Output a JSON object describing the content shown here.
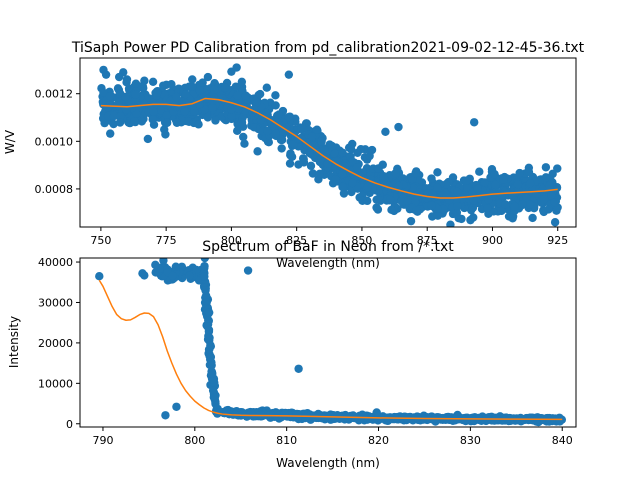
{
  "figure": {
    "background": "#ffffff",
    "scatter_color": "#1f77b4",
    "fit_color": "#ff7f0e"
  },
  "chart_data": [
    {
      "type": "scatter",
      "title": "TiSaph Power PD Calibration from pd_calibration2021-09-02-12-45-36.txt",
      "xlabel": "Wavelength (nm)",
      "ylabel": "W/V",
      "xlim": [
        742,
        932
      ],
      "ylim": [
        0.00064,
        0.00135
      ],
      "xticks": [
        750,
        775,
        800,
        825,
        850,
        875,
        900,
        925
      ],
      "xtick_labels": [
        "750",
        "775",
        "800",
        "825",
        "850",
        "875",
        "900",
        "925"
      ],
      "yticks": [
        0.0008,
        0.001,
        0.0012
      ],
      "ytick_labels": [
        "0.0008",
        "0.0010",
        "0.0012"
      ],
      "grid": false,
      "series": [
        {
          "kind": "scatter",
          "color": "#1f77b4",
          "x_range": [
            750,
            925
          ],
          "count": 1600,
          "noise_sd": 4.2e-05,
          "outliers": [
            {
              "x": 751,
              "y": 0.0013
            },
            {
              "x": 752,
              "y": 0.00128
            },
            {
              "x": 757,
              "y": 0.00127
            },
            {
              "x": 760,
              "y": 0.00126
            },
            {
              "x": 770,
              "y": 0.00125
            },
            {
              "x": 777,
              "y": 0.00124
            },
            {
              "x": 785,
              "y": 0.00126
            },
            {
              "x": 791,
              "y": 0.00127
            },
            {
              "x": 802,
              "y": 0.00131
            },
            {
              "x": 804,
              "y": 0.00125
            },
            {
              "x": 822,
              "y": 0.00128
            },
            {
              "x": 768,
              "y": 0.00101
            },
            {
              "x": 805,
              "y": 0.00099
            },
            {
              "x": 830,
              "y": 0.00095
            },
            {
              "x": 859,
              "y": 0.00104
            },
            {
              "x": 864,
              "y": 0.00106
            },
            {
              "x": 893,
              "y": 0.00108
            },
            {
              "x": 924,
              "y": 0.00066
            },
            {
              "x": 914,
              "y": 0.00087
            }
          ]
        },
        {
          "kind": "line",
          "color": "#ff7f0e",
          "x": [
            750,
            760,
            770,
            775,
            780,
            785,
            790,
            795,
            800,
            805,
            810,
            815,
            820,
            825,
            830,
            835,
            840,
            845,
            850,
            855,
            860,
            865,
            870,
            875,
            880,
            885,
            890,
            895,
            900,
            905,
            910,
            915,
            920,
            925
          ],
          "y": [
            0.00115,
            0.001145,
            0.001155,
            0.001155,
            0.00115,
            0.001158,
            0.00118,
            0.001175,
            0.001162,
            0.001145,
            0.00112,
            0.00109,
            0.001055,
            0.00102,
            0.00098,
            0.00094,
            0.000905,
            0.000875,
            0.000847,
            0.000825,
            0.000807,
            0.000792,
            0.000778,
            0.000768,
            0.000762,
            0.000762,
            0.000766,
            0.000772,
            0.000778,
            0.000782,
            0.000785,
            0.000788,
            0.000792,
            0.000798
          ]
        }
      ]
    },
    {
      "type": "scatter",
      "title": "Spectrum of BaF in Neon from /*.txt",
      "xlabel": "Wavelength (nm)",
      "ylabel": "Intensity",
      "xlim": [
        787.5,
        841.5
      ],
      "ylim": [
        -800,
        41000
      ],
      "xticks": [
        790,
        800,
        810,
        820,
        830,
        840
      ],
      "xtick_labels": [
        "790",
        "800",
        "810",
        "820",
        "830",
        "840"
      ],
      "yticks": [
        0,
        10000,
        20000,
        30000,
        40000
      ],
      "ytick_labels": [
        "0",
        "10000",
        "20000",
        "30000",
        "40000"
      ],
      "grid": false,
      "series": [
        {
          "kind": "scatter",
          "color": "#1f77b4",
          "segments": [
            {
              "x_range": [
                795.5,
                801
              ],
              "count": 70,
              "y_center": 37500,
              "noise_sd": 900
            },
            {
              "x_range": [
                801,
                801.8
              ],
              "count": 60,
              "y_from": 37000,
              "y_to": 15000,
              "noise_sd": 2500
            },
            {
              "x_range": [
                801.8,
                802.3
              ],
              "count": 25,
              "y_from": 14000,
              "y_to": 5000,
              "noise_sd": 1500
            },
            {
              "x_range": [
                802.3,
                806
              ],
              "count": 60,
              "y_from": 3000,
              "y_to": 2300,
              "noise_sd": 300
            },
            {
              "x_range": [
                806,
                812
              ],
              "count": 140,
              "y_from": 2500,
              "y_to": 2000,
              "noise_sd": 350
            },
            {
              "x_range": [
                812,
                820
              ],
              "count": 180,
              "y_from": 1900,
              "y_to": 1400,
              "noise_sd": 300
            },
            {
              "x_range": [
                820,
                840
              ],
              "count": 420,
              "y_from": 1400,
              "y_to": 1000,
              "noise_sd": 250
            }
          ],
          "outliers": [
            {
              "x": 789.6,
              "y": 36500
            },
            {
              "x": 794.3,
              "y": 37200
            },
            {
              "x": 794.5,
              "y": 36700
            },
            {
              "x": 795.7,
              "y": 39300
            },
            {
              "x": 796.8,
              "y": 2100
            },
            {
              "x": 798.0,
              "y": 4200
            },
            {
              "x": 805.8,
              "y": 37900
            },
            {
              "x": 811.3,
              "y": 13600
            },
            {
              "x": 819.8,
              "y": 2800
            }
          ]
        },
        {
          "kind": "line",
          "color": "#ff7f0e",
          "x": [
            789.6,
            790.0,
            790.5,
            791.0,
            791.5,
            792.0,
            792.5,
            793.0,
            793.5,
            794.0,
            794.5,
            795.0,
            795.5,
            796.0,
            796.5,
            797.0,
            797.5,
            798.0,
            798.5,
            799.0,
            799.5,
            800.0,
            800.5,
            801.0,
            801.5,
            802.0,
            802.5,
            803.0,
            804.0,
            805.0,
            806.0,
            808.0,
            810.0,
            812.0,
            815.0,
            820.0,
            825.0,
            830.0,
            835.0,
            840.0
          ],
          "y": [
            35500,
            34000,
            31500,
            29000,
            27000,
            26000,
            25600,
            25700,
            26300,
            27000,
            27400,
            27300,
            26500,
            24500,
            21500,
            18000,
            15000,
            12300,
            10000,
            8200,
            6800,
            5600,
            4700,
            3900,
            3300,
            2900,
            2600,
            2400,
            2200,
            2100,
            2050,
            2000,
            1950,
            1850,
            1700,
            1450,
            1300,
            1200,
            1150,
            1100
          ]
        }
      ]
    }
  ]
}
